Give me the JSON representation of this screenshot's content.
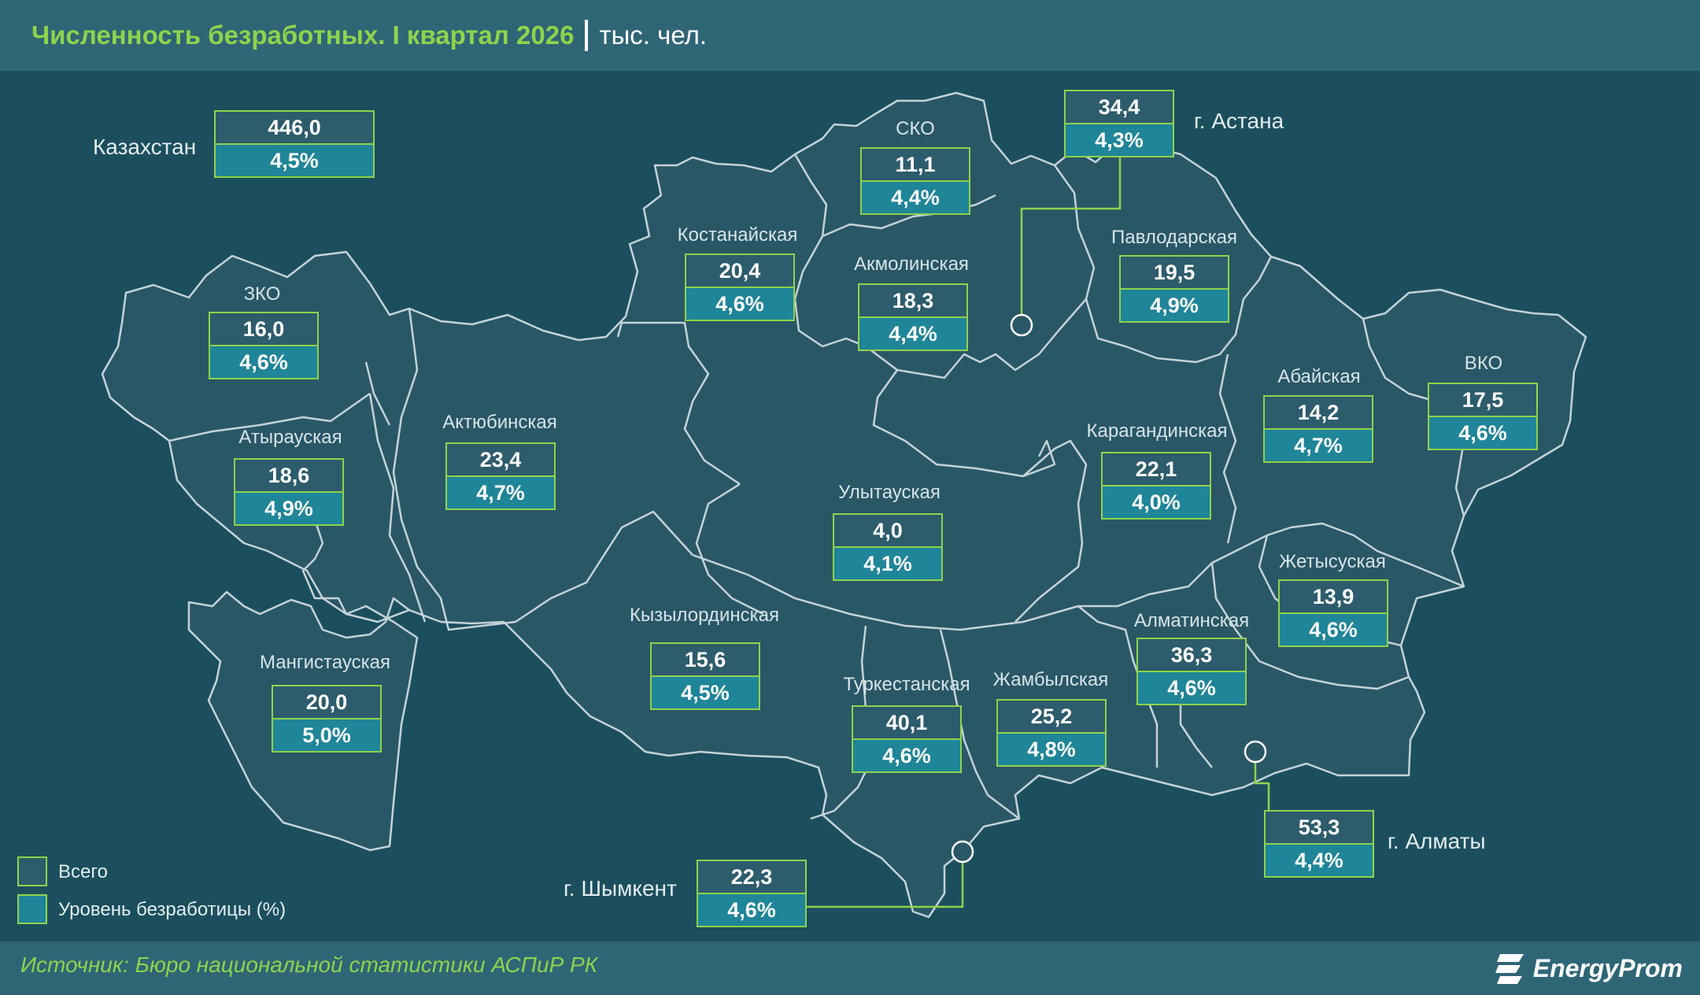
{
  "header": {
    "title": "Численность безработных. I квартал 2026",
    "unit": "тыс. чел."
  },
  "footer": {
    "source": "Источник: Бюро национальной статистики АСПиР РК",
    "brand": "EnergyProm"
  },
  "legend": {
    "total": "Всего",
    "rate": "Уровень безработицы (%)"
  },
  "colors": {
    "accent": "#8ed34c",
    "total_fill": "#2d5c6c",
    "rate_fill": "#1f8598",
    "region_fill": "#2a5766",
    "border": "#c4d3d8"
  },
  "national": {
    "name": "Казахстан",
    "total": "446,0",
    "rate": "4,5%"
  },
  "regions": {
    "zko": {
      "name": "ЗКО",
      "total": "16,0",
      "rate": "4,6%"
    },
    "atyrau": {
      "name": "Атырауская",
      "total": "18,6",
      "rate": "4,9%"
    },
    "mangistau": {
      "name": "Мангистауская",
      "total": "20,0",
      "rate": "5,0%"
    },
    "aktobe": {
      "name": "Актюбинская",
      "total": "23,4",
      "rate": "4,7%"
    },
    "kostanay": {
      "name": "Костанайская",
      "total": "20,4",
      "rate": "4,6%"
    },
    "sko": {
      "name": "СКО",
      "total": "11,1",
      "rate": "4,4%"
    },
    "akmola": {
      "name": "Акмолинская",
      "total": "18,3",
      "rate": "4,4%"
    },
    "astana": {
      "name": "г. Астана",
      "total": "34,4",
      "rate": "4,3%"
    },
    "pavlodar": {
      "name": "Павлодарская",
      "total": "19,5",
      "rate": "4,9%"
    },
    "abai": {
      "name": "Абайская",
      "total": "14,2",
      "rate": "4,7%"
    },
    "vko": {
      "name": "ВКО",
      "total": "17,5",
      "rate": "4,6%"
    },
    "karaganda": {
      "name": "Карагандинская",
      "total": "22,1",
      "rate": "4,0%"
    },
    "ulytau": {
      "name": "Улытауская",
      "total": "4,0",
      "rate": "4,1%"
    },
    "kyzylorda": {
      "name": "Кызылординская",
      "total": "15,6",
      "rate": "4,5%"
    },
    "turkestan": {
      "name": "Туркестанская",
      "total": "40,1",
      "rate": "4,6%"
    },
    "zhambyl": {
      "name": "Жамбылская",
      "total": "25,2",
      "rate": "4,8%"
    },
    "almaty_reg": {
      "name": "Алматинская",
      "total": "36,3",
      "rate": "4,6%"
    },
    "zhetysu": {
      "name": "Жетысуская",
      "total": "13,9",
      "rate": "4,6%"
    },
    "almaty_city": {
      "name": "г. Алматы",
      "total": "53,3",
      "rate": "4,4%"
    },
    "shymkent": {
      "name": "г. Шымкент",
      "total": "22,3",
      "rate": "4,6%"
    }
  }
}
